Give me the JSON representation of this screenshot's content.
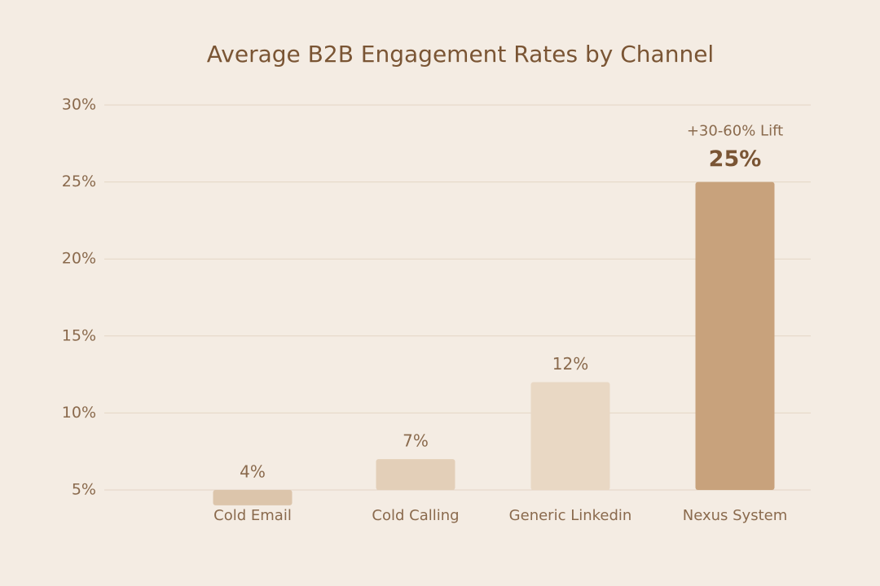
{
  "chart_data": {
    "type": "bar",
    "title": "Average B2B Engagement Rates by Channel",
    "categories": [
      "Cold Email",
      "Cold Calling",
      "Generic Linkedin",
      "Nexus System"
    ],
    "values": [
      4,
      7,
      12,
      25
    ],
    "value_labels": [
      "4%",
      "7%",
      "12%",
      "25%"
    ],
    "colors": [
      "#dcc5ab",
      "#e3cfb8",
      "#e9d8c4",
      "#c8a27c"
    ],
    "annotation": "+30-60% Lift",
    "ylim": [
      5,
      30
    ],
    "yticks": [
      {
        "value": 5,
        "label": "5%"
      },
      {
        "value": 10,
        "label": "10%"
      },
      {
        "value": 15,
        "label": "15%"
      },
      {
        "value": 20,
        "label": "20%"
      },
      {
        "value": 25,
        "label": "25%"
      },
      {
        "value": 30,
        "label": "30%"
      }
    ],
    "grid": true
  }
}
